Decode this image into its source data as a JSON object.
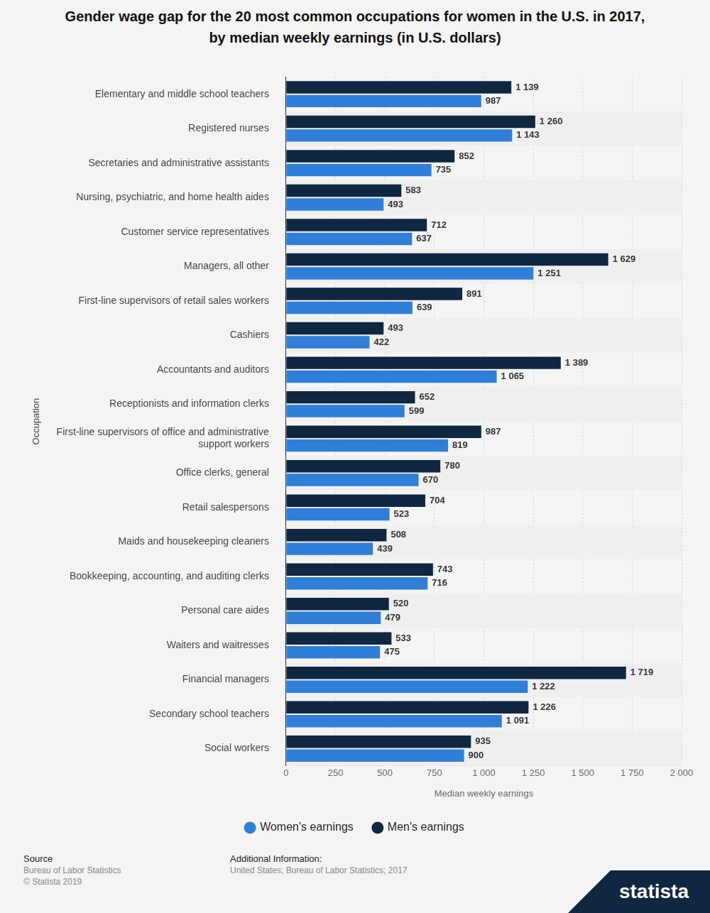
{
  "chart_data": {
    "type": "bar",
    "orientation": "horizontal",
    "title": "Gender wage gap for the 20 most common occupations for women in the U.S. in 2017, by median weekly earnings (in U.S. dollars)",
    "x_label": "Median weekly earnings",
    "y_label": "Occupation",
    "categories": [
      "Elementary and middle school teachers",
      "Registered nurses",
      "Secretaries and administrative assistants",
      "Nursing, psychiatric, and home health aides",
      "Customer service representatives",
      "Managers, all other",
      "First-line supervisors of retail sales workers",
      "Cashiers",
      "Accountants and auditors",
      "Receptionists and information clerks",
      "First-line supervisors of office and administrative support workers",
      "Office clerks, general",
      "Retail salespersons",
      "Maids and housekeeping cleaners",
      "Bookkeeping, accounting, and auditing clerks",
      "Personal care aides",
      "Waiters and waitresses",
      "Financial managers",
      "Secondary school teachers",
      "Social workers"
    ],
    "series": [
      {
        "name": "Men's earnings",
        "color": "#0f2741",
        "values": [
          1139,
          1260,
          852,
          583,
          712,
          1629,
          891,
          493,
          1389,
          652,
          987,
          780,
          704,
          508,
          743,
          520,
          533,
          1719,
          1226,
          935
        ],
        "value_labels": [
          "1 139",
          "1 260",
          "852",
          "583",
          "712",
          "1 629",
          "891",
          "493",
          "1 389",
          "652",
          "987",
          "780",
          "704",
          "508",
          "743",
          "520",
          "533",
          "1 719",
          "1 226",
          "935"
        ]
      },
      {
        "name": "Women's earnings",
        "color": "#2f7ed8",
        "values": [
          987,
          1143,
          735,
          493,
          637,
          1251,
          639,
          422,
          1065,
          599,
          819,
          670,
          523,
          439,
          716,
          479,
          475,
          1222,
          1091,
          900
        ],
        "value_labels": [
          "987",
          "1 143",
          "735",
          "493",
          "637",
          "1 251",
          "639",
          "422",
          "1 065",
          "599",
          "819",
          "670",
          "523",
          "439",
          "716",
          "479",
          "475",
          "1 222",
          "1 091",
          "900"
        ]
      }
    ],
    "xlim": [
      0,
      2000
    ],
    "xticks": [
      0,
      250,
      500,
      750,
      {
        "value": 1000,
        "label": "1 000"
      },
      {
        "value": 1250,
        "label": "1 250"
      },
      {
        "value": 1500,
        "label": "1 500"
      },
      {
        "value": 1750,
        "label": "1 750"
      },
      {
        "value": 2000,
        "label": "2 000"
      }
    ],
    "grid": true,
    "data_labels": true,
    "legend": "bottom"
  },
  "footer": {
    "source_heading": "Source",
    "source_lines": [
      "Bureau of Labor Statistics",
      "© Statista 2019"
    ],
    "info_heading": "Additional Information:",
    "info_lines": [
      "United States; Bureau of Labor Statistics; 2017"
    ],
    "logo": "statista"
  }
}
